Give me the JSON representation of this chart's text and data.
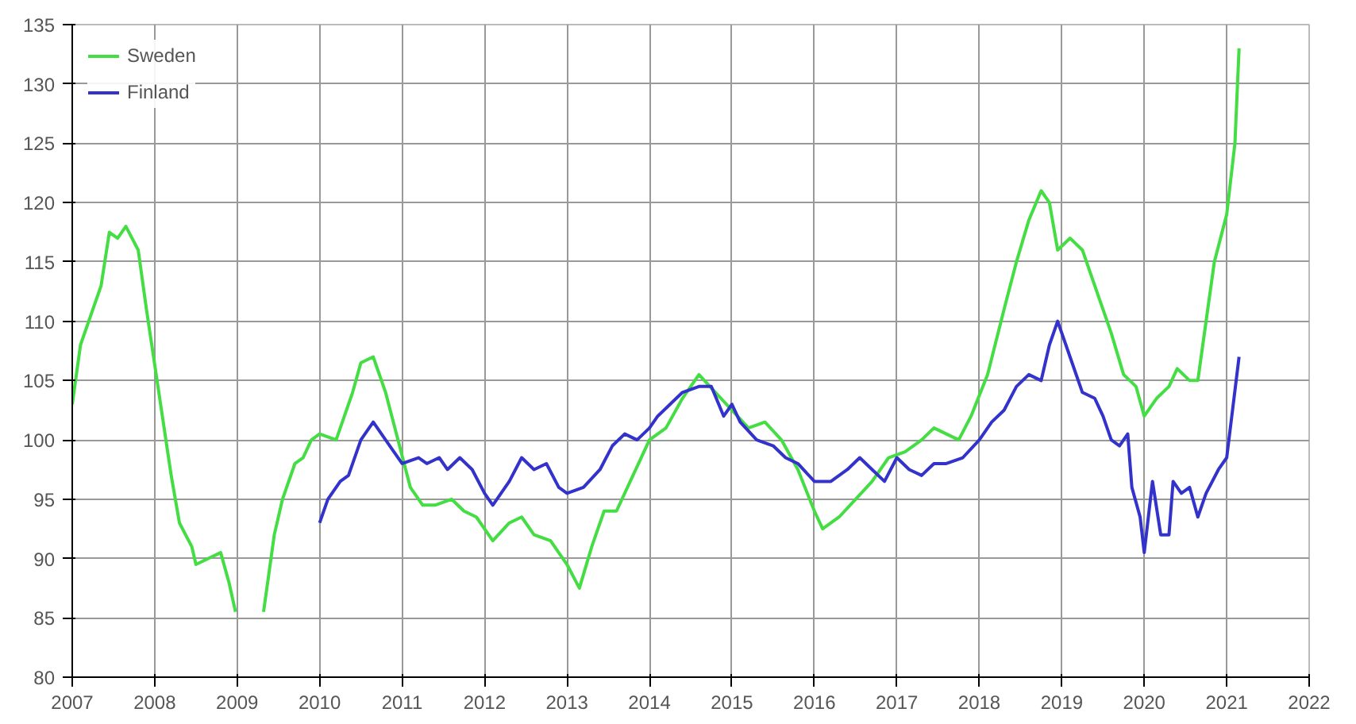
{
  "chart_data": {
    "type": "line",
    "xlim": [
      2007,
      2022
    ],
    "ylim": [
      80,
      135
    ],
    "xticks": [
      2007,
      2008,
      2009,
      2010,
      2011,
      2012,
      2013,
      2014,
      2015,
      2016,
      2017,
      2018,
      2019,
      2020,
      2021,
      2022
    ],
    "yticks": [
      80,
      85,
      90,
      95,
      100,
      105,
      110,
      115,
      120,
      125,
      130,
      135
    ],
    "grid": true,
    "legend": "top left",
    "marker": "none",
    "line_style": "solid",
    "series": [
      {
        "name": "Sweden",
        "color": "#44dd44",
        "x": [
          2007.0,
          2007.1,
          2007.2,
          2007.35,
          2007.45,
          2007.55,
          2007.65,
          2007.8,
          2007.9,
          2008.05,
          2008.2,
          2008.3,
          2008.45,
          2008.5,
          2008.65,
          2008.8,
          2008.9,
          2008.98,
          2009.15,
          2009.32,
          2009.45,
          2009.55,
          2009.7,
          2009.8,
          2009.9,
          2010.0,
          2010.2,
          2010.4,
          2010.5,
          2010.65,
          2010.8,
          2010.95,
          2011.1,
          2011.25,
          2011.4,
          2011.6,
          2011.75,
          2011.9,
          2012.1,
          2012.3,
          2012.45,
          2012.6,
          2012.8,
          2013.0,
          2013.15,
          2013.3,
          2013.45,
          2013.6,
          2013.8,
          2014.0,
          2014.2,
          2014.4,
          2014.6,
          2014.8,
          2015.0,
          2015.2,
          2015.4,
          2015.6,
          2015.8,
          2016.0,
          2016.1,
          2016.3,
          2016.5,
          2016.7,
          2016.9,
          2017.1,
          2017.3,
          2017.45,
          2017.6,
          2017.75,
          2017.9,
          2018.1,
          2018.3,
          2018.45,
          2018.6,
          2018.75,
          2018.85,
          2018.95,
          2019.1,
          2019.25,
          2019.4,
          2019.6,
          2019.75,
          2019.9,
          2020.0,
          2020.15,
          2020.3,
          2020.4,
          2020.55,
          2020.65,
          2020.75,
          2020.85,
          2021.0,
          2021.1,
          2021.15
        ],
        "values": [
          103,
          108,
          110,
          113,
          117.5,
          117,
          118,
          116,
          111,
          104,
          97,
          93,
          91,
          89.5,
          90,
          90.5,
          88,
          85.5,
          null,
          85.5,
          92,
          95,
          98,
          98.5,
          100,
          100.5,
          100,
          104,
          106.5,
          107,
          104,
          100,
          96,
          94.5,
          94.5,
          95,
          94,
          93.5,
          91.5,
          93,
          93.5,
          92,
          91.5,
          89.5,
          87.5,
          91,
          94,
          94,
          97,
          100,
          101,
          103.5,
          105.5,
          104,
          102.5,
          101,
          101.5,
          100,
          97.5,
          94,
          92.5,
          93.5,
          95,
          96.5,
          98.5,
          99,
          100,
          101,
          100.5,
          100,
          102,
          105.5,
          111,
          115,
          118.5,
          121,
          120,
          116,
          117,
          116,
          113,
          109,
          105.5,
          104.5,
          102,
          103.5,
          104.5,
          106,
          105,
          105,
          110,
          115,
          119,
          125,
          133
        ]
      },
      {
        "name": "Finland",
        "color": "#3333cc",
        "x": [
          2010.0,
          2010.1,
          2010.25,
          2010.35,
          2010.5,
          2010.65,
          2010.8,
          2011.0,
          2011.2,
          2011.3,
          2011.45,
          2011.55,
          2011.7,
          2011.85,
          2012.0,
          2012.1,
          2012.3,
          2012.45,
          2012.6,
          2012.75,
          2012.9,
          2013.0,
          2013.2,
          2013.4,
          2013.55,
          2013.7,
          2013.85,
          2014.0,
          2014.1,
          2014.25,
          2014.4,
          2014.6,
          2014.75,
          2014.9,
          2015.0,
          2015.1,
          2015.3,
          2015.5,
          2015.65,
          2015.8,
          2016.0,
          2016.2,
          2016.4,
          2016.55,
          2016.7,
          2016.85,
          2017.0,
          2017.15,
          2017.3,
          2017.45,
          2017.6,
          2017.8,
          2018.0,
          2018.15,
          2018.3,
          2018.45,
          2018.6,
          2018.75,
          2018.85,
          2018.95,
          2019.1,
          2019.25,
          2019.4,
          2019.5,
          2019.6,
          2019.7,
          2019.8,
          2019.85,
          2019.95,
          2020.0,
          2020.1,
          2020.2,
          2020.3,
          2020.35,
          2020.45,
          2020.55,
          2020.65,
          2020.75,
          2020.9,
          2021.0,
          2021.15
        ],
        "values": [
          93,
          95,
          96.5,
          97,
          100,
          101.5,
          100,
          98,
          98.5,
          98,
          98.5,
          97.5,
          98.5,
          97.5,
          95.5,
          94.5,
          96.5,
          98.5,
          97.5,
          98,
          96,
          95.5,
          96,
          97.5,
          99.5,
          100.5,
          100,
          101,
          102,
          103,
          104,
          104.5,
          104.5,
          102,
          103,
          101.5,
          100,
          99.5,
          98.5,
          98,
          96.5,
          96.5,
          97.5,
          98.5,
          97.5,
          96.5,
          98.5,
          97.5,
          97,
          98,
          98,
          98.5,
          100,
          101.5,
          102.5,
          104.5,
          105.5,
          105,
          108,
          110,
          107,
          104,
          103.5,
          102,
          100,
          99.5,
          100.5,
          96,
          93.5,
          90.5,
          96.5,
          92,
          92,
          96.5,
          95.5,
          96,
          93.5,
          95.5,
          97.5,
          98.5,
          107
        ]
      }
    ]
  }
}
